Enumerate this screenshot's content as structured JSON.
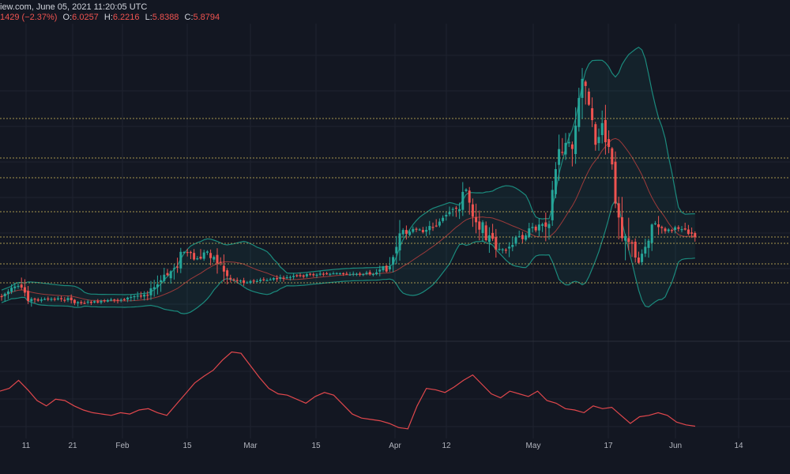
{
  "header": {
    "line1": "iew.com, June 05, 2021 11:20:05 UTC",
    "change": "1429 (−2.37%)",
    "o_label": "O:",
    "o_value": "6.0257",
    "h_label": "H:",
    "h_value": "6.2216",
    "l_label": "L:",
    "l_value": "5.8388",
    "c_label": "C:",
    "c_value": "5.8794"
  },
  "colors": {
    "background": "#131722",
    "up": "#26a69a",
    "down": "#ef5350",
    "band": "#1b8a7d",
    "basis": "#9c3a3a",
    "levels": "#c9b458",
    "indicator": "#e0474c"
  },
  "chart_data": [
    {
      "type": "candlestick",
      "x_tick_labels": [
        "11",
        "21",
        "Feb",
        "15",
        "Mar",
        "15",
        "Apr",
        "12",
        "May",
        "17",
        "Jun",
        "14"
      ],
      "overlays": [
        "bollinger-bands",
        "horizontal-levels"
      ],
      "last_candle": {
        "open": 6.0257,
        "high": 6.2216,
        "low": 5.8388,
        "close": 5.8794
      },
      "grid": true
    },
    {
      "type": "line",
      "series": [
        {
          "values": [
            62,
            66,
            78,
            64,
            48,
            40,
            50,
            48,
            40,
            34,
            30,
            28,
            26,
            30,
            28,
            34,
            36,
            30,
            26,
            42,
            58,
            74,
            84,
            93,
            108,
            120,
            118,
            100,
            82,
            66,
            58,
            56,
            50,
            44,
            54,
            60,
            56,
            42,
            28,
            22,
            20,
            18,
            14,
            8,
            6,
            40,
            66,
            64,
            60,
            68,
            78,
            86,
            72,
            58,
            52,
            62,
            58,
            54,
            62,
            48,
            44,
            36,
            34,
            30,
            40,
            36,
            38,
            26,
            14,
            24,
            26,
            30,
            26,
            16,
            12,
            10
          ]
        }
      ],
      "ylim": [
        0,
        130
      ]
    }
  ]
}
